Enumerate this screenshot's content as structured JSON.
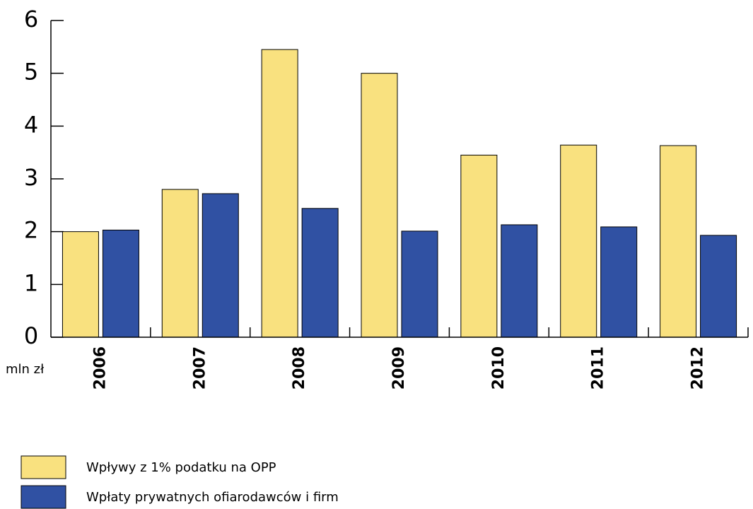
{
  "chart_data": {
    "type": "bar",
    "y_label": "mln zł",
    "categories": [
      "2006",
      "2007",
      "2008",
      "2009",
      "2010",
      "2011",
      "2012"
    ],
    "series": [
      {
        "name": "Wpływy z 1% podatku na OPP",
        "color": "#f9e17f",
        "values": [
          2.0,
          2.8,
          5.45,
          5.0,
          3.45,
          3.64,
          3.63
        ]
      },
      {
        "name": "Wpłaty prywatnych ofiarodawców i firm",
        "color": "#3051a3",
        "values": [
          2.03,
          2.72,
          2.44,
          2.01,
          2.13,
          2.09,
          1.93
        ]
      }
    ],
    "ylim": [
      0,
      6
    ],
    "yticks": [
      0,
      1,
      2,
      3,
      4,
      5,
      6
    ],
    "legend": "bottom-left"
  }
}
